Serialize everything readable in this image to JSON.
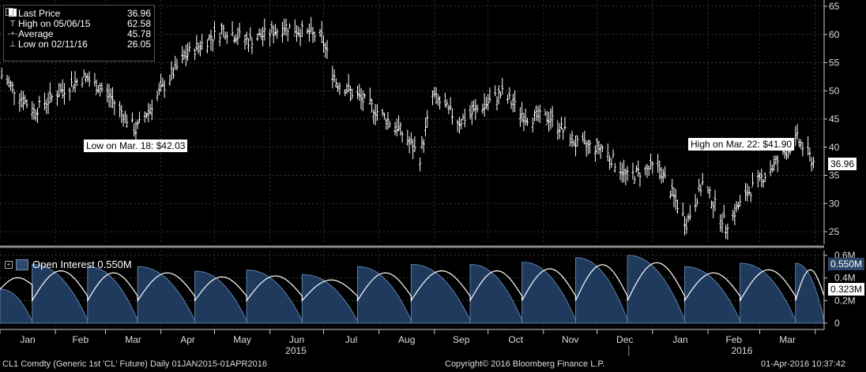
{
  "legend": {
    "rows": [
      {
        "symbol": "square",
        "label": "Last Price",
        "value": "36.96"
      },
      {
        "symbol": "T",
        "label": "High on 05/06/15",
        "value": "62.58"
      },
      {
        "symbol": "-+-",
        "label": "Average",
        "value": "45.78"
      },
      {
        "symbol": "⊥",
        "label": "Low on 02/11/16",
        "value": "26.05"
      }
    ]
  },
  "annotations": {
    "low": "Low on Mar. 18: $42.03",
    "high": "High on Mar. 22: $41.90",
    "last_tag": "36.96"
  },
  "oi_panel": {
    "label": "Open Interest 0.550M",
    "tag_oi": "0.550M",
    "tag_avg": "0.323M",
    "oi_color": "#1f3a5c",
    "line_color": "#ffffff"
  },
  "footer": {
    "left": "CL1 Comdty (Generic 1st 'CL' Future)  Daily 01JAN2015-01APR2016",
    "center": "Copyright© 2016 Bloomberg Finance L.P.",
    "right": "01-Apr-2016 10:37:42"
  },
  "chart_data": [
    {
      "type": "ohlc",
      "series_name": "Last Price",
      "yticks": [
        25,
        30,
        35,
        40,
        45,
        50,
        55,
        60,
        65
      ],
      "ylim": [
        22,
        66
      ],
      "xticks": [
        "Jan",
        "Feb",
        "Mar",
        "Apr",
        "May",
        "Jun",
        "Jul",
        "Aug",
        "Sep",
        "Oct",
        "Nov",
        "Dec",
        "Jan",
        "Feb",
        "Mar"
      ],
      "year_labels": [
        "2015",
        "2016"
      ],
      "grid": true,
      "points_month_close": [
        {
          "x": "2015-01-02",
          "y": 52.7
        },
        {
          "x": "2015-01-20",
          "y": 46.4
        },
        {
          "x": "2015-02-02",
          "y": 49.6
        },
        {
          "x": "2015-02-17",
          "y": 52.5
        },
        {
          "x": "2015-03-02",
          "y": 49.6
        },
        {
          "x": "2015-03-18",
          "y": 43.0
        },
        {
          "x": "2015-04-01",
          "y": 50.1
        },
        {
          "x": "2015-04-15",
          "y": 56.4
        },
        {
          "x": "2015-05-06",
          "y": 60.9
        },
        {
          "x": "2015-05-20",
          "y": 58.9
        },
        {
          "x": "2015-06-10",
          "y": 61.4
        },
        {
          "x": "2015-06-30",
          "y": 59.5
        },
        {
          "x": "2015-07-08",
          "y": 51.7
        },
        {
          "x": "2015-07-24",
          "y": 48.1
        },
        {
          "x": "2015-08-12",
          "y": 43.3
        },
        {
          "x": "2015-08-24",
          "y": 38.2
        },
        {
          "x": "2015-08-31",
          "y": 49.2
        },
        {
          "x": "2015-09-15",
          "y": 44.6
        },
        {
          "x": "2015-10-09",
          "y": 49.6
        },
        {
          "x": "2015-10-22",
          "y": 45.4
        },
        {
          "x": "2015-11-05",
          "y": 45.2
        },
        {
          "x": "2015-11-20",
          "y": 40.4
        },
        {
          "x": "2015-12-04",
          "y": 39.9
        },
        {
          "x": "2015-12-18",
          "y": 34.7
        },
        {
          "x": "2016-01-04",
          "y": 36.8
        },
        {
          "x": "2016-01-20",
          "y": 26.6
        },
        {
          "x": "2016-01-29",
          "y": 33.6
        },
        {
          "x": "2016-02-11",
          "y": 26.2
        },
        {
          "x": "2016-02-24",
          "y": 32.2
        },
        {
          "x": "2016-03-08",
          "y": 36.5
        },
        {
          "x": "2016-03-22",
          "y": 41.5
        },
        {
          "x": "2016-04-01",
          "y": 36.96
        }
      ]
    },
    {
      "type": "area",
      "series_name": "Open Interest",
      "yticks": [
        "0",
        "0.2M",
        "0.4M",
        "0.6M"
      ],
      "ylim": [
        0,
        0.62
      ]
    }
  ]
}
